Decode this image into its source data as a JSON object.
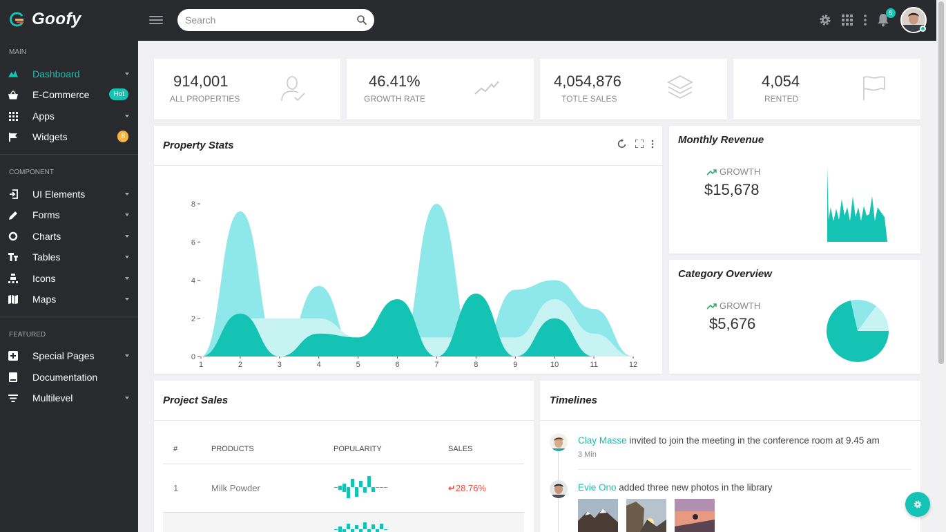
{
  "app": {
    "name": "Goofy"
  },
  "search": {
    "placeholder": "Search"
  },
  "topbar": {
    "notifications_count": "5"
  },
  "sidebar": {
    "sections": {
      "main": "MAIN",
      "component": "COMPONENT",
      "featured": "FEATURED"
    },
    "items": [
      {
        "label": "Dashboard",
        "icon": "dashboard-icon"
      },
      {
        "label": "E-Commerce",
        "icon": "basket-icon",
        "badge": "Hot"
      },
      {
        "label": "Apps",
        "icon": "apps-icon"
      },
      {
        "label": "Widgets",
        "icon": "flag-icon",
        "badge": "8"
      },
      {
        "label": "UI Elements",
        "icon": "login-icon"
      },
      {
        "label": "Forms",
        "icon": "pencil-icon"
      },
      {
        "label": "Charts",
        "icon": "donut-icon"
      },
      {
        "label": "Tables",
        "icon": "table-icon"
      },
      {
        "label": "Icons",
        "icon": "icons-icon"
      },
      {
        "label": "Maps",
        "icon": "map-icon"
      },
      {
        "label": "Special Pages",
        "icon": "pages-icon"
      },
      {
        "label": "Documentation",
        "icon": "book-icon"
      },
      {
        "label": "Multilevel",
        "icon": "filter-icon"
      }
    ]
  },
  "stats": [
    {
      "value": "914,001",
      "label": "ALL PROPERTIES",
      "icon": "user-check-icon"
    },
    {
      "value": "46.41%",
      "label": "GROWTH RATE",
      "icon": "trend-icon"
    },
    {
      "value": "4,054,876",
      "label": "TOTLE SALES",
      "icon": "layers-icon"
    },
    {
      "value": "4,054",
      "label": "RENTED",
      "icon": "flag-outline-icon"
    }
  ],
  "property_stats": {
    "title": "Property Stats"
  },
  "monthly_revenue": {
    "title": "Monthly Revenue",
    "growth_label": "GROWTH",
    "value": "$15,678"
  },
  "category_overview": {
    "title": "Category Overview",
    "growth_label": "GROWTH",
    "value": "$5,676"
  },
  "project_sales": {
    "title": "Project Sales",
    "columns": [
      "#",
      "PRODUCTS",
      "POPULARITY",
      "SALES"
    ],
    "rows": [
      {
        "num": "1",
        "product": "Milk Powder",
        "sales": "28.76%"
      }
    ]
  },
  "timelines": {
    "title": "Timelines",
    "items": [
      {
        "name": "Clay Masse",
        "text": "invited to join the meeting in the conference room at 9.45 am",
        "time": "3 Min"
      },
      {
        "name": "Evie Ono",
        "text": "added three new photos in the library"
      }
    ]
  },
  "colors": {
    "accent": "#14c3b4",
    "accent_light": "#8ee8ea",
    "accent_pale": "#c8f3f3",
    "sidebar_bg": "#292a2d",
    "danger": "#ef4b3d",
    "badge_warning": "#f5b53f"
  },
  "chart_data": [
    {
      "type": "area",
      "x": [
        1,
        2,
        3,
        4,
        5,
        6,
        7,
        8,
        9,
        10,
        11,
        12
      ],
      "ylim": [
        0,
        8
      ],
      "yticks": [
        0,
        2,
        4,
        6,
        8
      ],
      "series": [
        {
          "values": [
            0,
            7.6,
            0,
            3.7,
            0,
            0,
            8,
            0,
            3.5,
            4,
            2.5,
            0
          ]
        },
        {
          "values": [
            0,
            2,
            2,
            2,
            1,
            1,
            1,
            1,
            1,
            3,
            1.2,
            0
          ]
        },
        {
          "values": [
            0,
            2.25,
            0,
            1.2,
            1,
            3,
            0,
            3.3,
            0,
            2,
            0,
            0
          ]
        }
      ]
    }
  ]
}
